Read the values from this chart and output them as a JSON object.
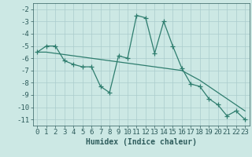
{
  "x": [
    0,
    1,
    2,
    3,
    4,
    5,
    6,
    7,
    8,
    9,
    10,
    11,
    12,
    13,
    14,
    15,
    16,
    17,
    18,
    19,
    20,
    21,
    22,
    23
  ],
  "y_main": [
    -5.5,
    -5.0,
    -5.0,
    -6.2,
    -6.5,
    -6.7,
    -6.7,
    -8.3,
    -8.8,
    -5.8,
    -6.0,
    -2.5,
    -2.7,
    -5.6,
    -3.0,
    -5.0,
    -6.8,
    -8.1,
    -8.3,
    -9.3,
    -9.8,
    -10.7,
    -10.3,
    -11.0
  ],
  "y_trend": [
    -5.5,
    -5.5,
    -5.6,
    -5.7,
    -5.8,
    -5.9,
    -6.0,
    -6.1,
    -6.2,
    -6.3,
    -6.4,
    -6.5,
    -6.6,
    -6.7,
    -6.8,
    -6.9,
    -7.0,
    -7.4,
    -7.8,
    -8.3,
    -8.8,
    -9.3,
    -9.8,
    -10.3
  ],
  "line_color": "#2e7d6e",
  "marker": "+",
  "markersize": 4,
  "linewidth": 0.9,
  "xlabel": "Humidex (Indice chaleur)",
  "xlim": [
    -0.5,
    23.5
  ],
  "ylim": [
    -11.5,
    -1.5
  ],
  "yticks": [
    -2,
    -3,
    -4,
    -5,
    -6,
    -7,
    -8,
    -9,
    -10,
    -11
  ],
  "xticks": [
    0,
    1,
    2,
    3,
    4,
    5,
    6,
    7,
    8,
    9,
    10,
    11,
    12,
    13,
    14,
    15,
    16,
    17,
    18,
    19,
    20,
    21,
    22,
    23
  ],
  "bg_color": "#cce8e4",
  "grid_color": "#aacccc",
  "text_color": "#2e5c5c",
  "xlabel_fontsize": 7,
  "tick_fontsize": 6.5,
  "fig_width": 3.2,
  "fig_height": 2.0,
  "dpi": 100
}
